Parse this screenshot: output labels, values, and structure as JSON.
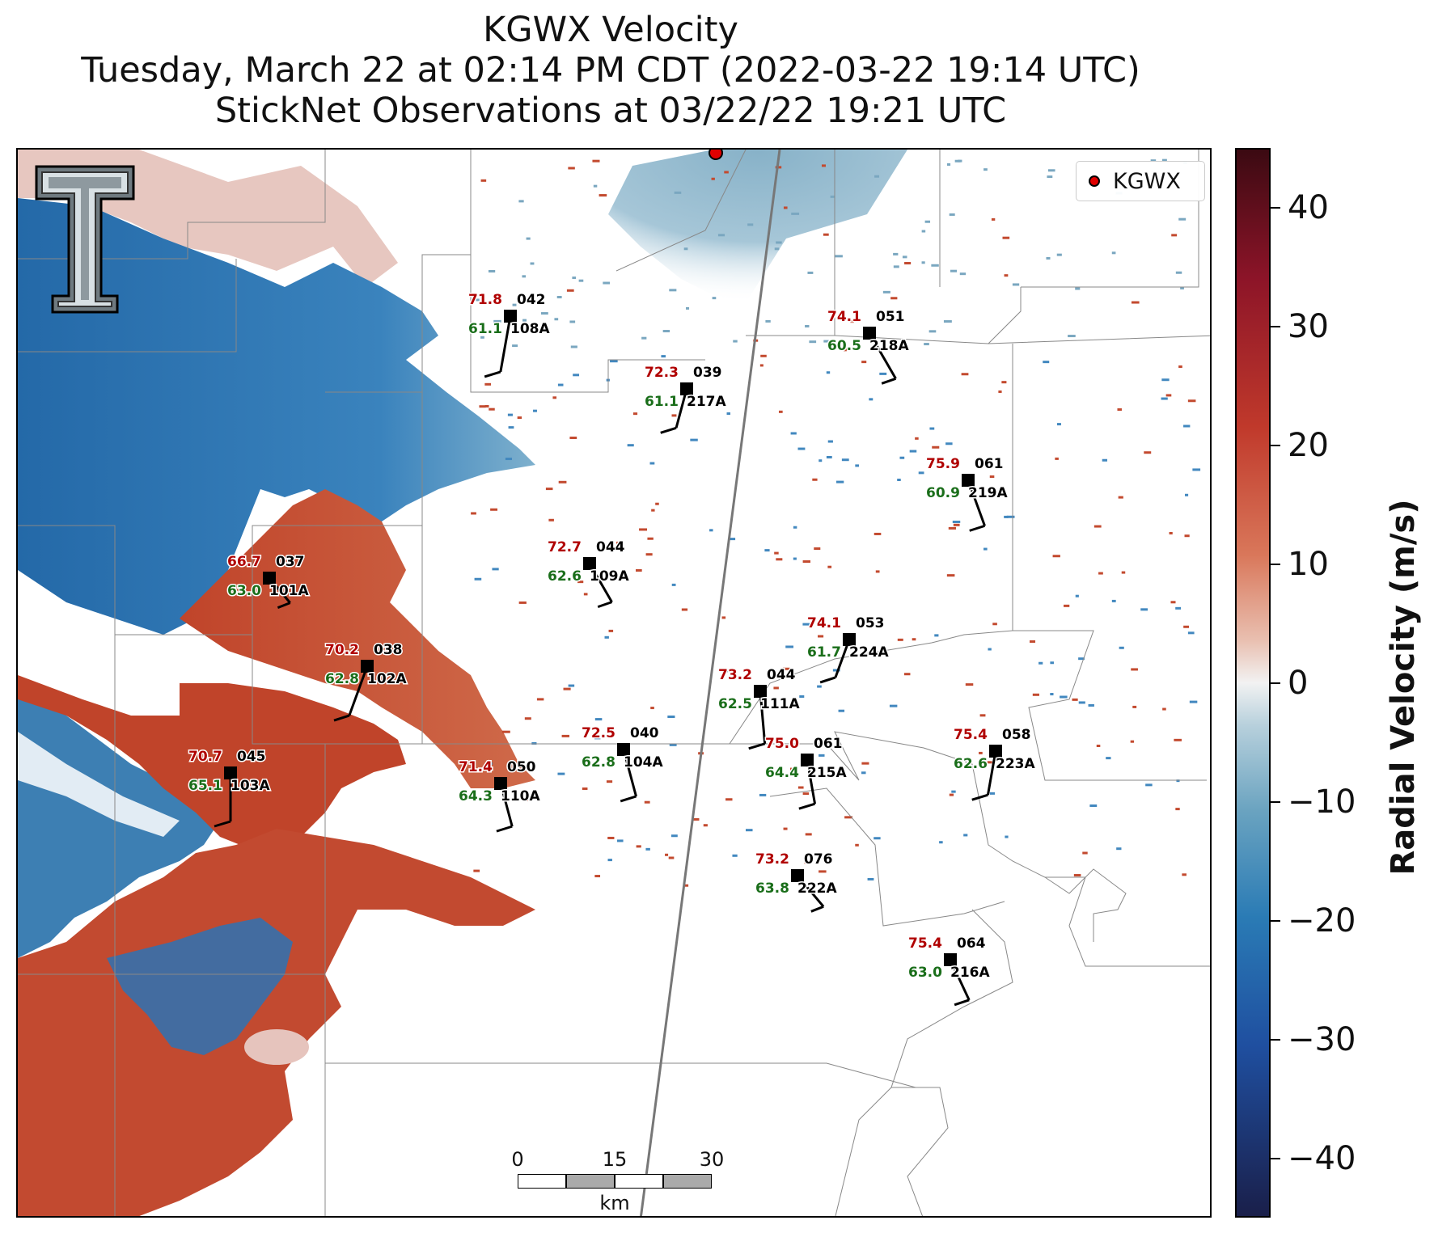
{
  "title": {
    "line1": "KGWX Velocity",
    "line2": "Tuesday, March 22 at 02:14 PM CDT (2022-03-22 19:14 UTC)",
    "line3": "StickNet Observations at 03/22/22 19:21 UTC"
  },
  "legend": {
    "label": "KGWX",
    "marker_color": "#e00000"
  },
  "colorbar": {
    "title": "Radial Velocity (m/s)",
    "range": [
      -45,
      45
    ],
    "ticks": [
      "40",
      "30",
      "20",
      "10",
      "0",
      "−10",
      "−20",
      "−30",
      "−40"
    ],
    "colors": {
      "max": "#3b0a12",
      "zero": "#f2f2f2",
      "min": "#1a1f4a",
      "inbound": "#2a7bb5",
      "outbound": "#c0392b"
    }
  },
  "scale_bar": {
    "ticks": [
      "0",
      "15",
      "30"
    ],
    "unit": "km"
  },
  "stations": [
    {
      "temp": "71.8",
      "dew": "61.1",
      "dir": "042",
      "id": "108A"
    },
    {
      "temp": "74.1",
      "dew": "60.5",
      "dir": "051",
      "id": "218A"
    },
    {
      "temp": "72.3",
      "dew": "61.1",
      "dir": "039",
      "id": "217A"
    },
    {
      "temp": "75.9",
      "dew": "60.9",
      "dir": "061",
      "id": "219A"
    },
    {
      "temp": "72.7",
      "dew": "62.6",
      "dir": "044",
      "id": "109A"
    },
    {
      "temp": "66.7",
      "dew": "63.0",
      "dir": "037",
      "id": "101A"
    },
    {
      "temp": "74.1",
      "dew": "61.7",
      "dir": "053",
      "id": "224A"
    },
    {
      "temp": "70.2",
      "dew": "62.8",
      "dir": "038",
      "id": "102A"
    },
    {
      "temp": "73.2",
      "dew": "62.5",
      "dir": "044",
      "id": "111A"
    },
    {
      "temp": "72.5",
      "dew": "62.8",
      "dir": "040",
      "id": "104A"
    },
    {
      "temp": "75.0",
      "dew": "64.4",
      "dir": "061",
      "id": "215A"
    },
    {
      "temp": "75.4",
      "dew": "62.6",
      "dir": "058",
      "id": "223A"
    },
    {
      "temp": "70.7",
      "dew": "65.1",
      "dir": "045",
      "id": "103A"
    },
    {
      "temp": "71.4",
      "dew": "64.3",
      "dir": "050",
      "id": "110A"
    },
    {
      "temp": "73.2",
      "dew": "63.8",
      "dir": "076",
      "id": "222A"
    },
    {
      "temp": "75.4",
      "dew": "63.0",
      "dir": "064",
      "id": "216A"
    }
  ]
}
